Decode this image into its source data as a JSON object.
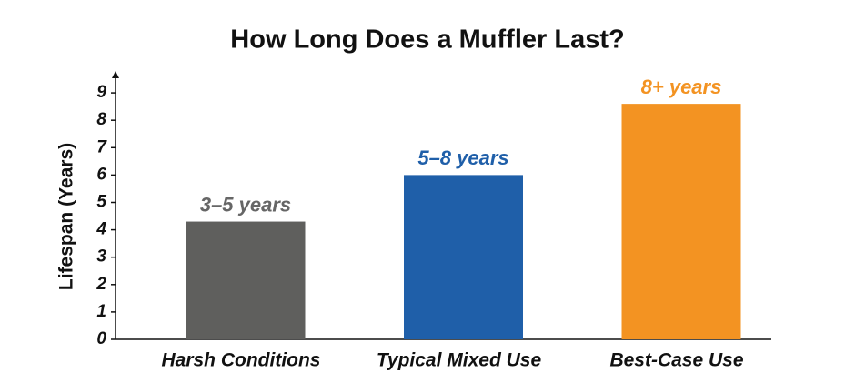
{
  "chart_data": {
    "type": "bar",
    "title": "How Long Does a Muffler Last?",
    "y_label": "Lifespan (Years)",
    "categories": [
      "Harsh Conditions",
      "Typical Mixed Use",
      "Best-Case Use"
    ],
    "values": [
      4.3,
      6,
      8.6
    ],
    "colors": [
      "#5f5f5d",
      "#1f5fa9",
      "#f39322"
    ],
    "annotations": [
      {
        "text": "3–5 years",
        "color": "#666666"
      },
      {
        "text": "5–8 years",
        "color": "#1f5fa9"
      },
      {
        "text": "8+ years",
        "color": "#f39322"
      }
    ],
    "ylim": [
      0,
      9.8
    ],
    "yticks": [
      0,
      1,
      2,
      3,
      4,
      5,
      6,
      7,
      8,
      9
    ],
    "grid": false
  }
}
